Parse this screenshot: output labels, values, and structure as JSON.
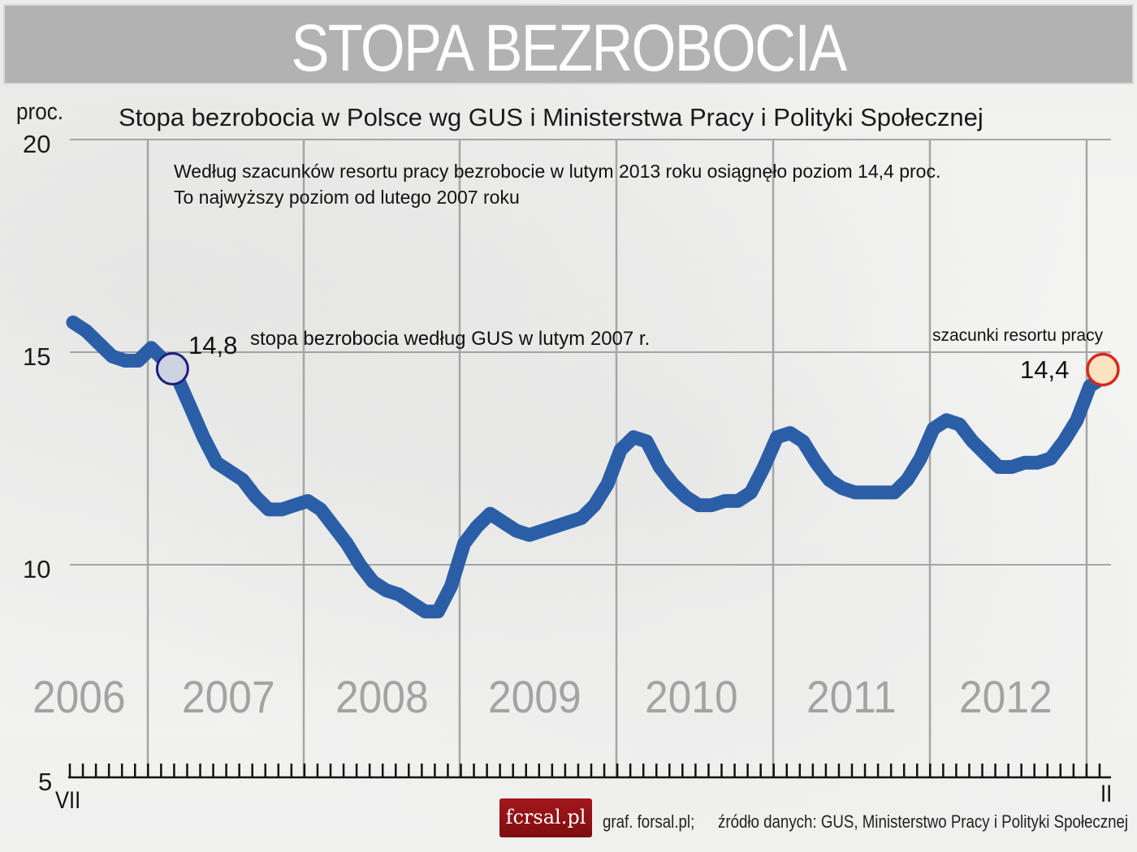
{
  "header": {
    "banner_title": "STOPA BEZROBOCIA"
  },
  "chart_data": {
    "type": "line",
    "title": "STOPA BEZROBOCIA",
    "subtitle": "Stopa bezrobocia w Polsce wg GUS i Ministerstwa Pracy i Polityki Społecznej",
    "ylabel": "proc.",
    "xlabel": "",
    "ylim": [
      5,
      20
    ],
    "yticks": [
      5,
      10,
      15,
      20
    ],
    "grid": true,
    "x_start_label": "VII",
    "x_end_label": "II",
    "year_labels": [
      "2006",
      "2007",
      "2008",
      "2009",
      "2010",
      "2011",
      "2012"
    ],
    "x_period": "monthly, VII 2006 – II 2013",
    "series": [
      {
        "name": "Stopa bezrobocia",
        "color": "#2a5fa8",
        "values": [
          15.7,
          15.5,
          15.2,
          14.9,
          14.8,
          14.8,
          15.1,
          14.8,
          14.4,
          13.7,
          13.0,
          12.4,
          12.2,
          12.0,
          11.6,
          11.3,
          11.3,
          11.4,
          11.5,
          11.3,
          10.9,
          10.5,
          10.0,
          9.6,
          9.4,
          9.3,
          9.1,
          8.9,
          8.9,
          9.5,
          10.5,
          10.9,
          11.2,
          11.0,
          10.8,
          10.7,
          10.8,
          10.9,
          11.0,
          11.1,
          11.4,
          11.9,
          12.7,
          13.0,
          12.9,
          12.3,
          11.9,
          11.6,
          11.4,
          11.4,
          11.5,
          11.5,
          11.7,
          12.3,
          13.0,
          13.1,
          12.9,
          12.4,
          12.0,
          11.8,
          11.7,
          11.7,
          11.7,
          11.7,
          12.0,
          12.5,
          13.2,
          13.4,
          13.3,
          12.9,
          12.6,
          12.3,
          12.3,
          12.4,
          12.4,
          12.5,
          12.9,
          13.4,
          14.2,
          14.4
        ]
      }
    ],
    "annotations": [
      {
        "label": "14,8",
        "text": "stopa bezrobocia według GUS w lutym 2007 r.",
        "x": "II 2007",
        "y": 14.8,
        "marker_color": "#cdd3e0",
        "marker_border": "#1c1f7a"
      },
      {
        "label": "14,4",
        "text": "szacunki resortu pracy",
        "x": "II 2013",
        "y": 14.4,
        "marker_color": "#fbe2c0",
        "marker_border": "#d8281c"
      }
    ],
    "note": [
      "Według szacunków resortu pracy bezrobocie w lutym 2013 roku osiągnęło poziom 14,4 proc.",
      "To najwyższy poziom od lutego 2007 roku"
    ]
  },
  "axis": {
    "unit": "proc.",
    "y": [
      "20",
      "15",
      "10",
      "5"
    ],
    "x_start": "VII",
    "x_end": "II",
    "years": [
      "2006",
      "2007",
      "2008",
      "2009",
      "2010",
      "2011",
      "2012"
    ]
  },
  "annotations": {
    "gus_value": "14,8",
    "gus_text": "stopa bezrobocia według GUS w lutym 2007 r.",
    "ministry_text": "szacunki resortu pracy",
    "ministry_value": "14,4"
  },
  "note": {
    "line1": "Według szacunków resortu pracy bezrobocie w lutym 2013 roku osiągnęło poziom 14,4 proc.",
    "line2": "To najwyższy poziom od lutego 2007 roku"
  },
  "footer": {
    "logo": "fϲrsal.pl",
    "credit": "graf. forsal.pl;",
    "source": "źródło danych: GUS, Ministerstwo Pracy i Polityki Społecznej"
  },
  "colors": {
    "line": "#2a5fa8",
    "banner": "#b2b2b2",
    "logo": "#9b1519"
  }
}
